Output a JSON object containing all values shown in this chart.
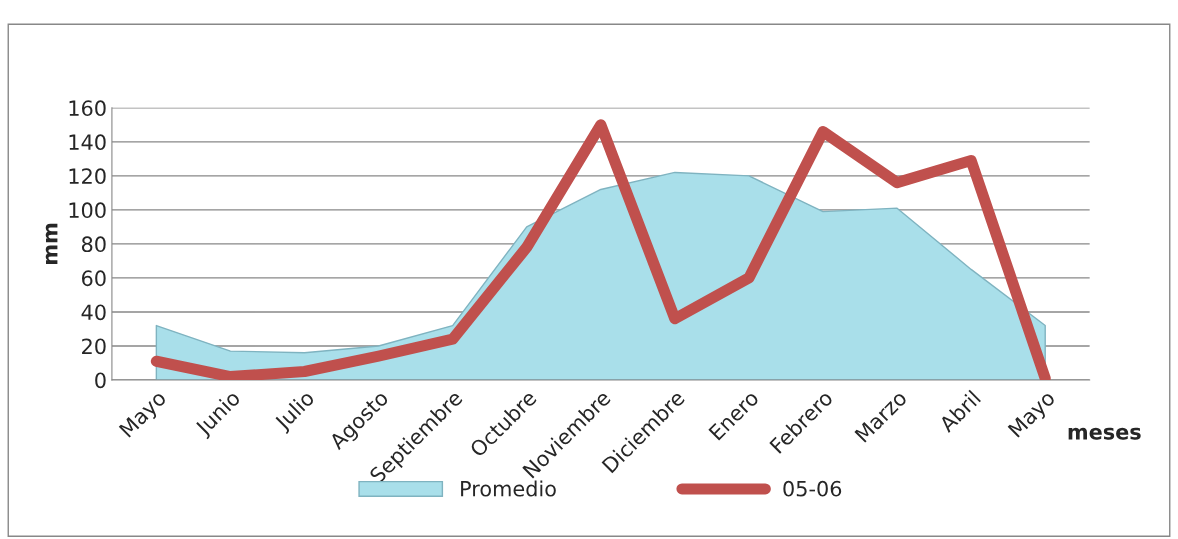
{
  "chart_data": {
    "type": "line",
    "xlabel": "meses",
    "ylabel": "mm",
    "categories": [
      "Mayo",
      "Junio",
      "Julio",
      "Agosto",
      "Septiembre",
      "Octubre",
      "Noviembre",
      "Diciembre",
      "Enero",
      "Febrero",
      "Marzo",
      "Abril",
      "Mayo"
    ],
    "series": [
      {
        "name": "Promedio",
        "type": "area",
        "color": "#a9dfea",
        "values": [
          32,
          17,
          16,
          20,
          32,
          90,
          112,
          122,
          120,
          99,
          101,
          65,
          32
        ]
      },
      {
        "name": "05-06",
        "color": "#c0504d",
        "values": [
          11,
          2,
          5,
          14,
          24,
          78,
          150,
          36,
          60,
          146,
          116,
          129,
          1
        ]
      }
    ],
    "ylim": [
      0,
      160
    ],
    "yticks": [
      0,
      20,
      40,
      60,
      80,
      100,
      120,
      140,
      160
    ],
    "grid": "y",
    "legend": "bottom",
    "marker": "none",
    "line_style": "solid"
  }
}
